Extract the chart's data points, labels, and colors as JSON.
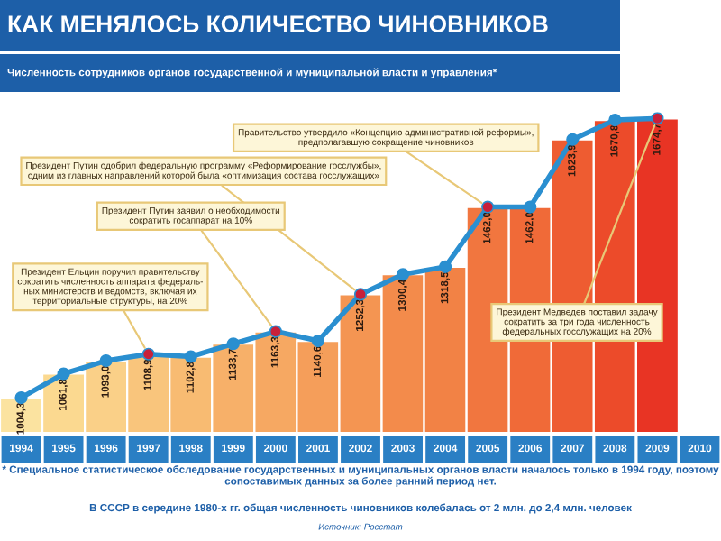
{
  "chart_data": {
    "type": "bar",
    "title": "КАК МЕНЯЛОСЬ КОЛИЧЕСТВО ЧИНОВНИКОВ",
    "subtitle": "Численность сотрудников органов государственной и муниципальной власти и управления*",
    "categories": [
      "1994",
      "1995",
      "1996",
      "1997",
      "1998",
      "1999",
      "2000",
      "2001",
      "2002",
      "2003",
      "2004",
      "2005",
      "2006",
      "2007",
      "2008",
      "2009",
      "2010"
    ],
    "series": [
      {
        "values": [
          1004.3,
          1061.8,
          1093.0,
          1108.9,
          1102.8,
          1133.7,
          1163.3,
          1140.6,
          1252.3,
          1300.4,
          1318.5,
          1462.0,
          1462.0,
          1623.9,
          1670.8,
          1674.7,
          null
        ],
        "colors": [
          "#fbe3a0",
          "#fbd990",
          "#fad088",
          "#f9c57c",
          "#f8bb72",
          "#f7b069",
          "#f6a862",
          "#f59e5a",
          "#f49552",
          "#f38b4b",
          "#f28245",
          "#f1763f",
          "#f06a38",
          "#ee5c31",
          "#ec4b2a",
          "#e83424",
          "#fbe3a0"
        ],
        "value_labels": [
          "1004,3",
          "1061,8",
          "1093,0",
          "1108,9",
          "1102,8",
          "1133,7",
          "1163,3",
          "1140,6",
          "1252,3",
          "1300,4",
          "1318,5",
          "1462,0",
          "1462,0",
          "1623,9",
          "1670,8",
          "1674,7",
          null
        ]
      },
      {
        "type": "line",
        "color": "#2a8fd0",
        "values": [
          1004.3,
          1061.8,
          1093.0,
          1108.9,
          1102.8,
          1133.7,
          1163.3,
          1140.6,
          1252.3,
          1300.4,
          1318.5,
          1462.0,
          1462.0,
          1623.9,
          1670.8,
          1674.7,
          null
        ],
        "colors": [
          "#2a8fd0",
          "#2a8fd0",
          "#2a8fd0",
          "#c8203a",
          "#2a8fd0",
          "#2a8fd0",
          "#c8203a",
          "#2a8fd0",
          "#c8203a",
          "#2a8fd0",
          "#2a8fd0",
          "#c8203a",
          "#2a8fd0",
          "#2a8fd0",
          "#2a8fd0",
          "#c8203a",
          "#2a8fd0"
        ]
      }
    ],
    "ylim": [
      920,
      1690
    ],
    "tick_labels": "x",
    "marker": "circle",
    "line_style": "solid",
    "annotations": [
      {
        "text": "Правительство утвердило «Концепцию административной реформы»,\nпредполагавшую сокращение чиновников",
        "x": "2005",
        "y": 1462.0
      },
      {
        "text": "Президент Путин одобрил федеральную программу «Реформирование госслужбы»,\nодним из главных направлений которой была «оптимизация состава госслужащих»",
        "x": "2002",
        "y": 1252.3
      },
      {
        "text": "Президент Путин заявил о необходимости\nсократить госаппарат на 10%",
        "x": "2000",
        "y": 1163.3
      },
      {
        "text": "Президент Ельцин поручил правительству\nсократить численность аппарата федераль-\nных министерств и ведомств, включая их\nтерриториальные структуры, на 20%",
        "x": "1997",
        "y": 1108.9
      },
      {
        "text": "Президент Медведев поставил задачу\nсократить за три года численность\nфедеральных госслужащих на 20%",
        "x": "2009",
        "y": 1674.7
      },
      "* Специальное статистическое обследование государственных и муниципальных органов власти началось только в 1994 году, поэтому сопоставимых данных за более ранний период нет.",
      "В СССР в середине 1980-х гг. общая численность чиновников колебалась от 2 млн. до 2,4 млн. человек",
      "Источник: Росстат"
    ]
  }
}
